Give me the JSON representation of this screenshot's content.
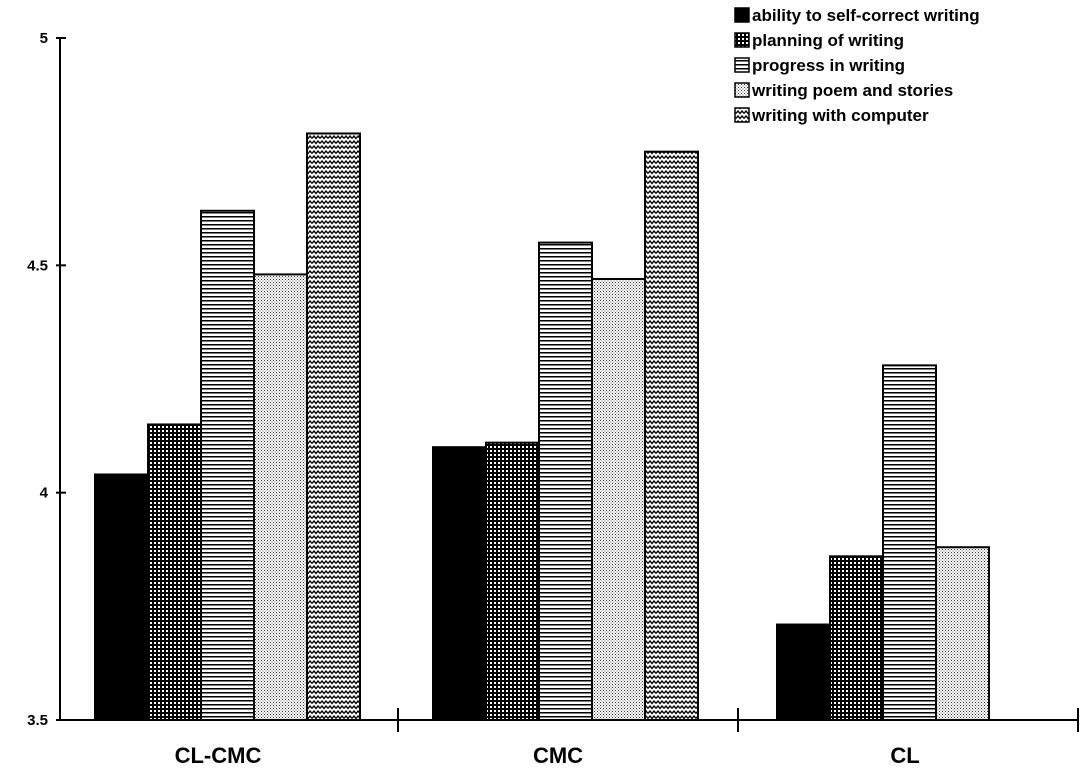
{
  "chart_data": {
    "type": "bar",
    "categories": [
      "CL-CMC",
      "CMC",
      "CL"
    ],
    "series": [
      {
        "name": "ability to self-correct writing",
        "values": [
          4.04,
          4.1,
          3.71
        ],
        "pattern": "solid"
      },
      {
        "name": "planning of writing",
        "values": [
          4.15,
          4.11,
          3.86
        ],
        "pattern": "grid"
      },
      {
        "name": "progress in writing",
        "values": [
          4.62,
          4.55,
          4.28
        ],
        "pattern": "hlines"
      },
      {
        "name": "writing poem and stories",
        "values": [
          4.48,
          4.47,
          3.88
        ],
        "pattern": "dots"
      },
      {
        "name": "writing with computer",
        "values": [
          4.79,
          4.75,
          null
        ],
        "pattern": "zigzag"
      }
    ],
    "yticks": [
      "3.5",
      "4",
      "4.5",
      "5"
    ],
    "ylim": [
      3.5,
      5
    ],
    "xlabel": "",
    "ylabel": "",
    "legend_position": "top-right",
    "grid": false
  }
}
